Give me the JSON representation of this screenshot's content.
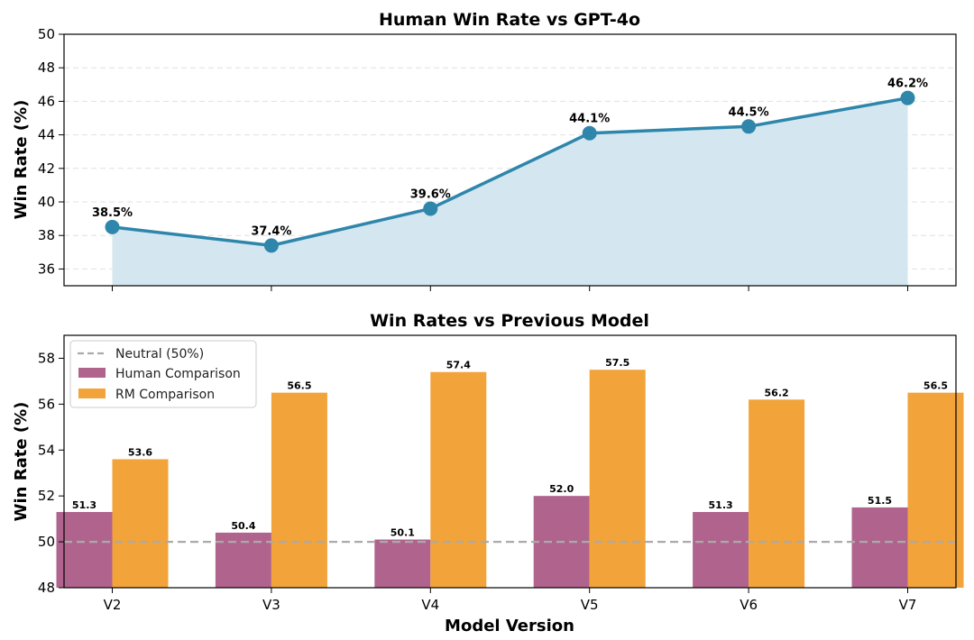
{
  "chart_data": [
    {
      "type": "line",
      "title": "Human Win Rate vs GPT-4o",
      "xlabel": "",
      "ylabel": "Win Rate (%)",
      "categories": [
        "V2",
        "V3",
        "V4",
        "V5",
        "V6",
        "V7"
      ],
      "values": [
        38.5,
        37.4,
        39.6,
        44.1,
        44.5,
        46.2
      ],
      "value_labels": [
        "38.5%",
        "37.4%",
        "39.6%",
        "44.1%",
        "44.5%",
        "46.2%"
      ],
      "ylim": [
        35,
        50
      ],
      "yticks": [
        "36",
        "38",
        "40",
        "42",
        "44",
        "46",
        "48",
        "50"
      ],
      "grid": true,
      "fill_area": true,
      "line_color": "#2e86ab",
      "fill_color": "#d4e6ef"
    },
    {
      "type": "bar",
      "title": "Win Rates vs Previous Model",
      "xlabel": "Model Version",
      "ylabel": "Win Rate (%)",
      "categories": [
        "V2",
        "V3",
        "V4",
        "V5",
        "V6",
        "V7"
      ],
      "series": [
        {
          "name": "Human Comparison",
          "values": [
            51.3,
            50.4,
            50.1,
            52.0,
            51.3,
            51.5
          ],
          "labels": [
            "51.3",
            "50.4",
            "50.1",
            "52.0",
            "51.3",
            "51.5"
          ],
          "color": "#b0648d"
        },
        {
          "name": "RM Comparison",
          "values": [
            53.6,
            56.5,
            57.4,
            57.5,
            56.2,
            56.5
          ],
          "labels": [
            "53.6",
            "56.5",
            "57.4",
            "57.5",
            "56.2",
            "56.5"
          ],
          "color": "#f2a33a"
        }
      ],
      "reference_line": {
        "name": "Neutral (50%)",
        "value": 50,
        "style": "dashed",
        "color": "#aaaaaa"
      },
      "ylim": [
        48,
        59
      ],
      "yticks": [
        "48",
        "50",
        "52",
        "54",
        "56",
        "58"
      ],
      "legend_position": "top-left"
    }
  ]
}
